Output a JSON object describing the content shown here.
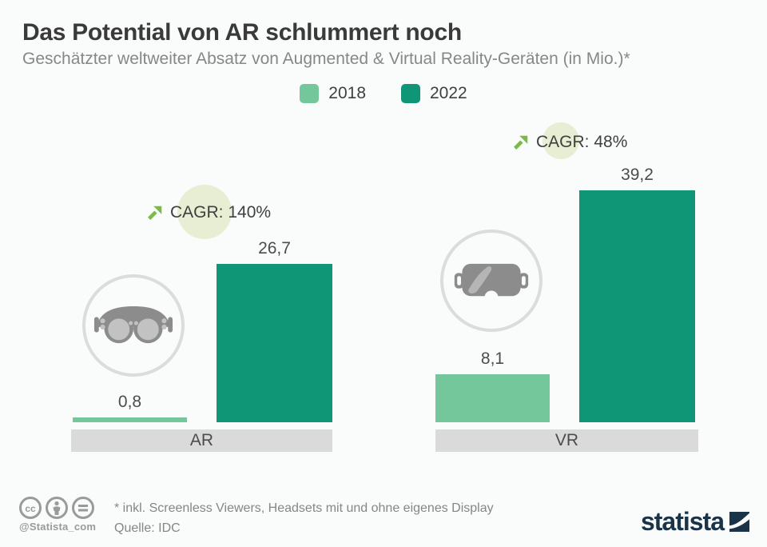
{
  "header": {
    "title": "Das Potential von AR schlummert noch",
    "subtitle": "Geschätzter weltweiter Absatz von Augmented & Virtual Reality-Geräten (in Mio.)*"
  },
  "legend": {
    "items": [
      {
        "label": "2018",
        "color": "#74c79a"
      },
      {
        "label": "2022",
        "color": "#0f9677"
      }
    ]
  },
  "chart_data": {
    "type": "bar",
    "title": "Das Potential von AR schlummert noch",
    "subtitle": "Geschätzter weltweiter Absatz von Augmented & Virtual Reality-Geräten (in Mio.)*",
    "categories": [
      "AR",
      "VR"
    ],
    "series": [
      {
        "name": "2018",
        "color": "#74c79a",
        "values": [
          0.8,
          8.1
        ],
        "value_labels": [
          "0,8",
          "8,1"
        ]
      },
      {
        "name": "2022",
        "color": "#0f9677",
        "values": [
          26.7,
          39.2
        ],
        "value_labels": [
          "26,7",
          "39,2"
        ]
      }
    ],
    "annotations": [
      {
        "category": "AR",
        "text": "CAGR: 140%"
      },
      {
        "category": "VR",
        "text": "CAGR: 48%"
      }
    ],
    "unit": "Mio.",
    "ylim": [
      0,
      40
    ],
    "grid": false,
    "legend_position": "top-center"
  },
  "groups": [
    {
      "category": "AR",
      "cagr": "CAGR: 140%",
      "v2018": "0,8",
      "v2022": "26,7",
      "icon": "ar-glasses-icon"
    },
    {
      "category": "VR",
      "cagr": "CAGR: 48%",
      "v2018": "8,1",
      "v2022": "39,2",
      "icon": "vr-headset-icon"
    }
  ],
  "footer": {
    "handle": "@Statista_com",
    "license_icons": [
      "cc",
      "by",
      "nd"
    ],
    "footnote": "* inkl. Screenless Viewers, Headsets mit und ohne eigenes Display",
    "source": "Quelle: IDC",
    "brand": "statista"
  },
  "colors": {
    "bar_2018": "#74c79a",
    "bar_2022": "#0f9677",
    "arrow_green": "#7cb94a",
    "cagr_bubble": "#e7eed3",
    "category_strip": "#dadada",
    "brand_navy": "#1b3349",
    "icon_gray": "#8c8c8c",
    "icon_light_gray": "#c2c2c2"
  }
}
